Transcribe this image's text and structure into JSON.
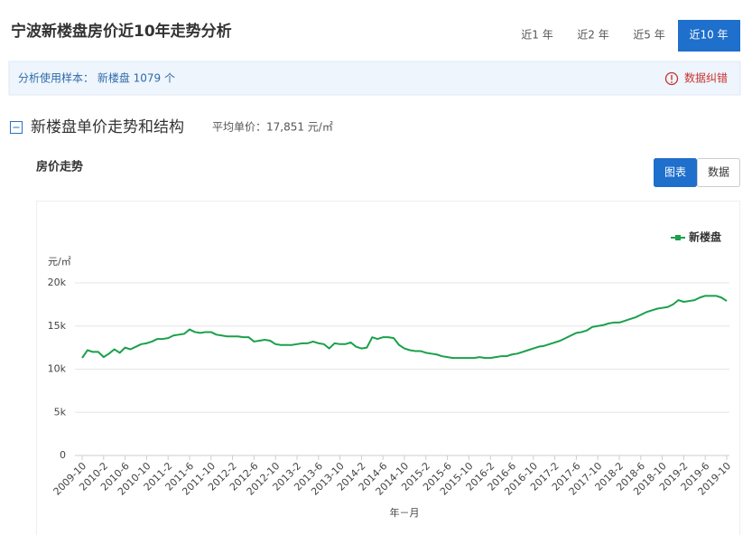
{
  "header": {
    "title": "宁波新楼盘房价近10年走势分析",
    "tabs": [
      {
        "label": "近1 年",
        "active": false
      },
      {
        "label": "近2 年",
        "active": false
      },
      {
        "label": "近5 年",
        "active": false
      },
      {
        "label": "近10 年",
        "active": true
      }
    ]
  },
  "info_bar": {
    "sample": "分析使用样本： 新楼盘 1079 个",
    "report": "数据纠错"
  },
  "section": {
    "title": "新楼盘单价走势和结构",
    "average": "平均单价：17,851 元/㎡"
  },
  "panel": {
    "title": "房价走势",
    "toggles": [
      {
        "label": "图表",
        "active": true
      },
      {
        "label": "数据",
        "active": false
      }
    ]
  },
  "chart_data": {
    "type": "line",
    "y_label": "元/㎡",
    "x_label": "年－月",
    "categories": [
      "2009-10",
      null,
      null,
      null,
      "2010-2",
      null,
      null,
      null,
      "2010-6",
      null,
      null,
      null,
      "2010-10",
      null,
      null,
      null,
      "2011-2",
      null,
      null,
      null,
      "2011-6",
      null,
      null,
      null,
      "2011-10",
      null,
      null,
      null,
      "2012-2",
      null,
      null,
      null,
      "2012-6",
      null,
      null,
      null,
      "2012-10",
      null,
      null,
      null,
      "2013-2",
      null,
      null,
      null,
      "2013-6",
      null,
      null,
      null,
      "2013-10",
      null,
      null,
      null,
      "2014-2",
      null,
      null,
      null,
      "2014-6",
      null,
      null,
      null,
      "2014-10",
      null,
      null,
      null,
      "2015-2",
      null,
      null,
      null,
      "2015-6",
      null,
      null,
      null,
      "2015-10",
      null,
      null,
      null,
      "2016-2",
      null,
      null,
      null,
      "2016-6",
      null,
      null,
      null,
      "2016-10",
      null,
      null,
      null,
      "2017-2",
      null,
      null,
      null,
      "2017-6",
      null,
      null,
      null,
      "2017-10",
      null,
      null,
      null,
      "2018-2",
      null,
      null,
      null,
      "2018-6",
      null,
      null,
      null,
      "2018-10",
      null,
      null,
      null,
      "2019-2",
      null,
      null,
      null,
      "2019-6",
      null,
      null,
      null,
      "2019-10"
    ],
    "series": [
      {
        "name": "新楼盘",
        "color": "#1aa04b",
        "values": [
          11300,
          12200,
          12000,
          12000,
          11400,
          11800,
          12300,
          11900,
          12500,
          12300,
          12600,
          12900,
          13000,
          13200,
          13500,
          13500,
          13600,
          13900,
          14000,
          14100,
          14600,
          14300,
          14200,
          14300,
          14300,
          14000,
          13900,
          13800,
          13800,
          13800,
          13700,
          13700,
          13200,
          13300,
          13400,
          13300,
          12900,
          12800,
          12800,
          12800,
          12900,
          13000,
          13000,
          13200,
          13000,
          12900,
          12400,
          13000,
          12900,
          12900,
          13100,
          12600,
          12400,
          12500,
          13700,
          13500,
          13700,
          13700,
          13600,
          12800,
          12400,
          12200,
          12100,
          12100,
          11900,
          11800,
          11700,
          11500,
          11400,
          11300,
          11300,
          11300,
          11300,
          11300,
          11400,
          11300,
          11300,
          11400,
          11500,
          11500,
          11700,
          11800,
          12000,
          12200,
          12400,
          12600,
          12700,
          12900,
          13100,
          13300,
          13600,
          13900,
          14200,
          14300,
          14500,
          14900,
          15000,
          15100,
          15300,
          15400,
          15400,
          15600,
          15800,
          16000,
          16300,
          16600,
          16800,
          17000,
          17100,
          17200,
          17500,
          18000,
          17800,
          17900,
          18000,
          18300,
          18500,
          18500,
          18500,
          18300,
          17900
        ]
      }
    ],
    "ylim": [
      0,
      20000
    ],
    "yticks": [
      0,
      {
        "value": 5000,
        "label": "5k"
      },
      {
        "value": 10000,
        "label": "10k"
      },
      {
        "value": 15000,
        "label": "15k"
      },
      {
        "value": 20000,
        "label": "20k"
      }
    ],
    "grid": true,
    "legend": "top-right"
  }
}
